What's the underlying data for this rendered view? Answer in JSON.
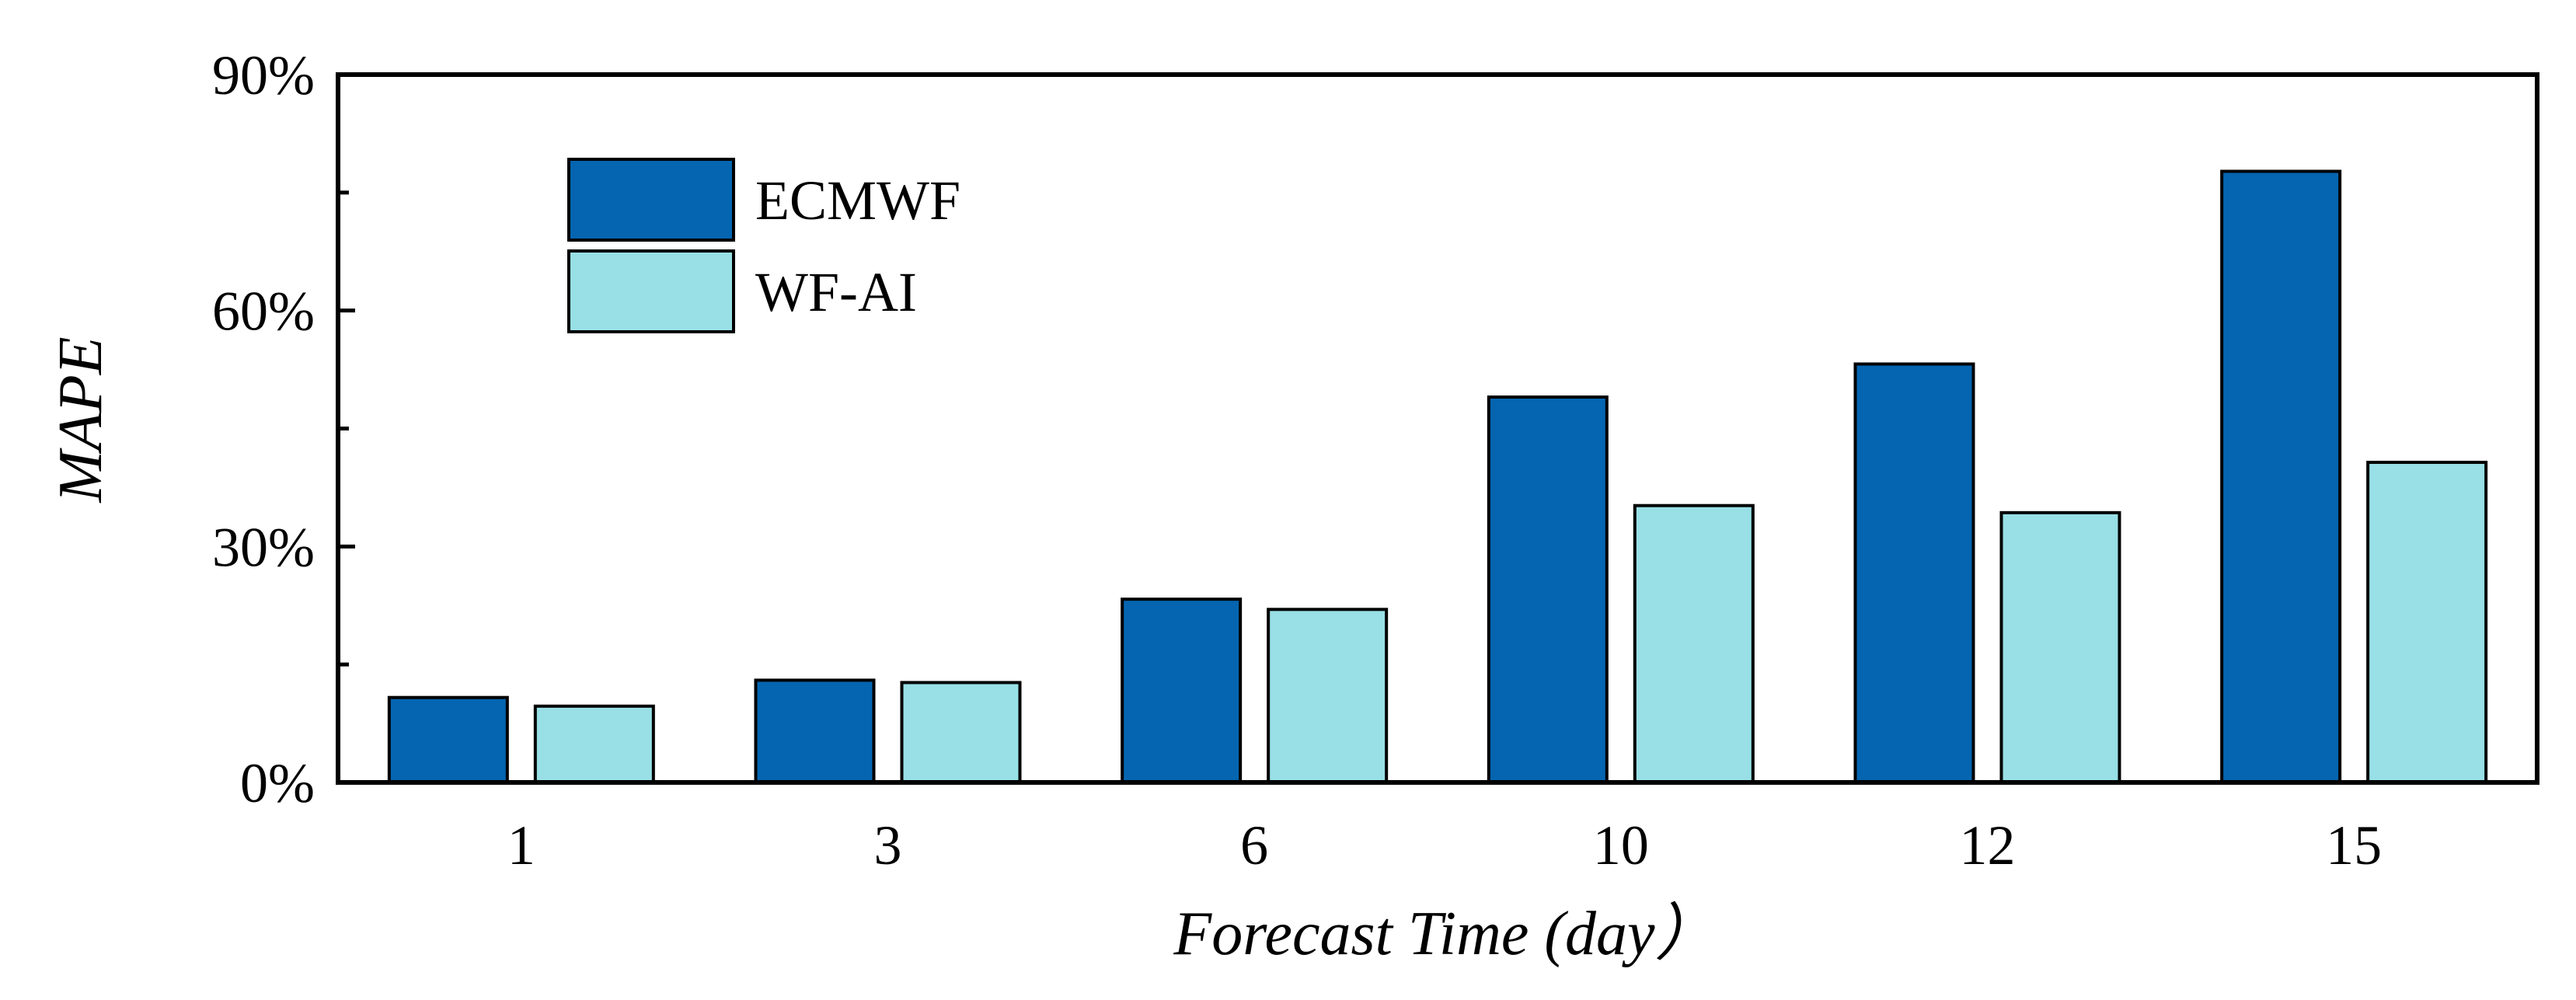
{
  "chart_data": {
    "type": "bar",
    "title": "",
    "xlabel": "Forecast Time (day）",
    "ylabel": "MAPE",
    "categories": [
      "1",
      "3",
      "6",
      "10",
      "12",
      "15"
    ],
    "series": [
      {
        "name": "ECMWF",
        "color": "#0565b0",
        "values": [
          10.8,
          13.0,
          23.3,
          49.0,
          53.2,
          77.7
        ]
      },
      {
        "name": "WF-AI",
        "color": "#98e0e6",
        "values": [
          9.7,
          12.7,
          22.0,
          35.2,
          34.3,
          40.7
        ]
      }
    ],
    "ylim": [
      0,
      90
    ],
    "yticks": [
      0,
      30,
      60,
      90
    ],
    "ytick_labels": [
      "0%",
      "30%",
      "60%",
      "90%"
    ],
    "legend_position": "top-left",
    "grid": false
  }
}
